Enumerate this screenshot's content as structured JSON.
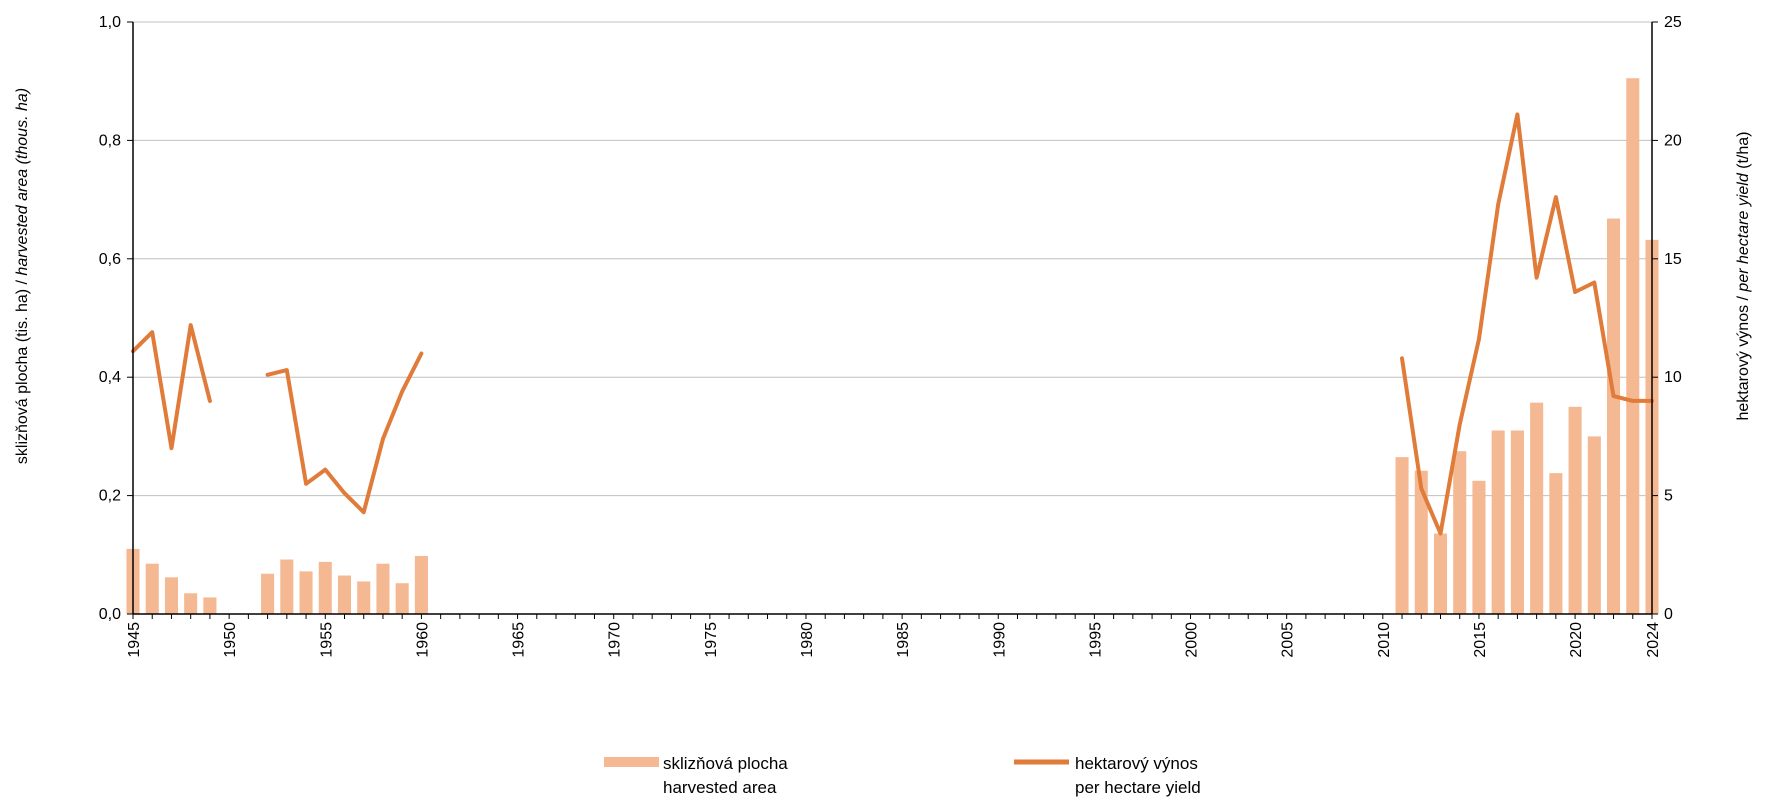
{
  "chart_data": {
    "type": "bar",
    "x_range": [
      1945,
      2024
    ],
    "x_tick_labels": [
      "1945",
      "1950",
      "1955",
      "1960",
      "1965",
      "1970",
      "1975",
      "1980",
      "1985",
      "1990",
      "1995",
      "2000",
      "2005",
      "2010",
      "2015",
      "2020",
      "2024"
    ],
    "left_axis": {
      "label_parts": [
        "sklizňová plocha (tis. ha) / ",
        "harvested area (thous. ha)"
      ],
      "ylim": [
        0,
        1.0
      ],
      "ticks": [
        "0,0",
        "0,2",
        "0,4",
        "0,6",
        "0,8",
        "1,0"
      ]
    },
    "right_axis": {
      "label_parts": [
        "hektarový výnos / ",
        "per hectare yield",
        " (t/ha)"
      ],
      "ylim": [
        0,
        25
      ],
      "ticks": [
        "0",
        "5",
        "10",
        "15",
        "20",
        "25"
      ]
    },
    "grid": true,
    "legend_position": "bottom-center",
    "series": [
      {
        "name": "sklizňová plocha",
        "name_en": "harvested area",
        "kind": "bar",
        "axis": "left",
        "color": "#F4B993",
        "points": [
          [
            1945,
            0.11
          ],
          [
            1946,
            0.085
          ],
          [
            1947,
            0.062
          ],
          [
            1948,
            0.035
          ],
          [
            1949,
            0.028
          ],
          [
            1952,
            0.068
          ],
          [
            1953,
            0.092
          ],
          [
            1954,
            0.072
          ],
          [
            1955,
            0.088
          ],
          [
            1956,
            0.065
          ],
          [
            1957,
            0.055
          ],
          [
            1958,
            0.085
          ],
          [
            1959,
            0.052
          ],
          [
            1960,
            0.098
          ],
          [
            2011,
            0.265
          ],
          [
            2012,
            0.242
          ],
          [
            2013,
            0.136
          ],
          [
            2014,
            0.275
          ],
          [
            2015,
            0.225
          ],
          [
            2016,
            0.31
          ],
          [
            2017,
            0.31
          ],
          [
            2018,
            0.357
          ],
          [
            2019,
            0.238
          ],
          [
            2020,
            0.35
          ],
          [
            2021,
            0.3
          ],
          [
            2022,
            0.668
          ],
          [
            2023,
            0.905
          ],
          [
            2024,
            0.632
          ]
        ]
      },
      {
        "name": "hektarový výnos",
        "name_en": "per hectare yield",
        "kind": "line",
        "axis": "right",
        "color": "#E07B39",
        "segments": [
          [
            [
              1945,
              11.1
            ],
            [
              1946,
              11.9
            ],
            [
              1947,
              7.0
            ],
            [
              1948,
              12.2
            ],
            [
              1949,
              9.0
            ]
          ],
          [
            [
              1952,
              10.1
            ],
            [
              1953,
              10.3
            ],
            [
              1954,
              5.5
            ],
            [
              1955,
              6.1
            ],
            [
              1956,
              5.1
            ],
            [
              1957,
              4.3
            ],
            [
              1958,
              7.4
            ],
            [
              1959,
              9.4
            ],
            [
              1960,
              11.0
            ]
          ],
          [
            [
              2011,
              10.8
            ],
            [
              2012,
              5.3
            ],
            [
              2013,
              3.4
            ],
            [
              2014,
              8.0
            ],
            [
              2015,
              11.6
            ],
            [
              2016,
              17.3
            ],
            [
              2017,
              21.1
            ],
            [
              2018,
              14.2
            ],
            [
              2019,
              17.6
            ],
            [
              2020,
              13.6
            ],
            [
              2021,
              14.0
            ],
            [
              2022,
              9.2
            ],
            [
              2023,
              9.0
            ],
            [
              2024,
              9.0
            ]
          ]
        ]
      }
    ]
  }
}
